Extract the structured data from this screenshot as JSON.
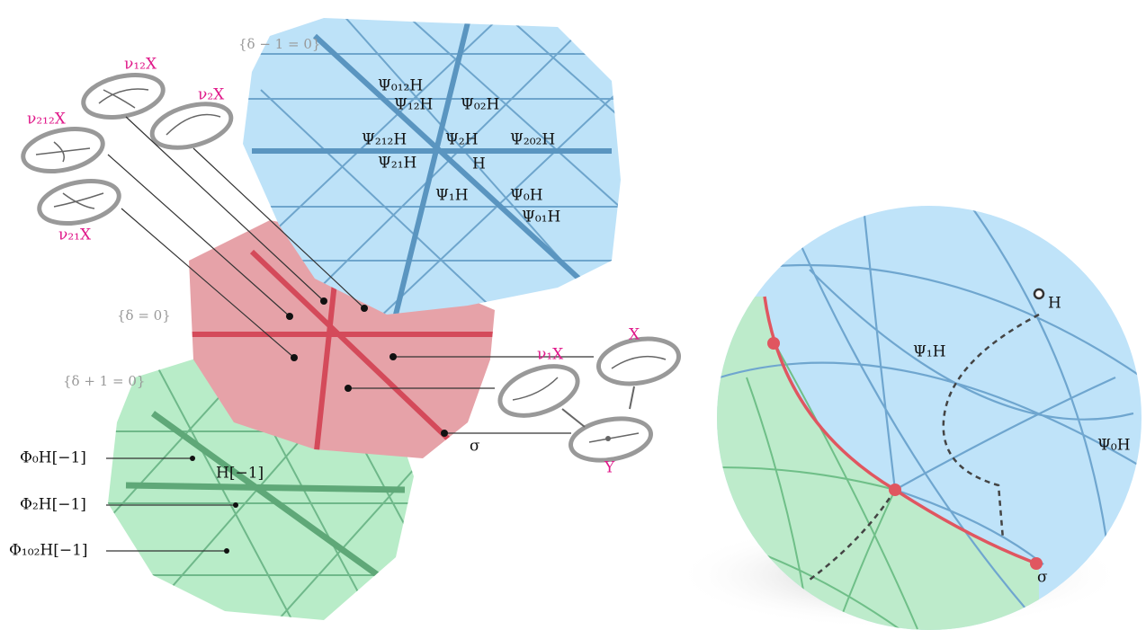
{
  "left_diagram": {
    "regions": [
      "{δ − 1 = 0}",
      "{δ = 0}",
      "{δ + 1 = 0}"
    ],
    "objects": [
      "ν₁₂X",
      "ν₂X",
      "ν₂₁₂X",
      "ν₂₁X",
      "ν₁X",
      "X",
      "Y",
      "σ"
    ],
    "blue_labels": [
      "Ψ₀₁₂H",
      "Ψ₁₂H",
      "Ψ₀₂H",
      "Ψ₂₁₂H",
      "Ψ₂H",
      "Ψ₂₀₂H",
      "Ψ₂₁H",
      "H",
      "Ψ₁H",
      "Ψ₀H",
      "Ψ₀₁H"
    ],
    "green_labels": [
      "Φ₀H[−1]",
      "Φ₂H[−1]",
      "Φ₁₀₂H[−1]",
      "H[−1]"
    ]
  },
  "sphere": {
    "labels": [
      "H",
      "Ψ₁H",
      "Ψ₀H",
      "σ"
    ]
  }
}
